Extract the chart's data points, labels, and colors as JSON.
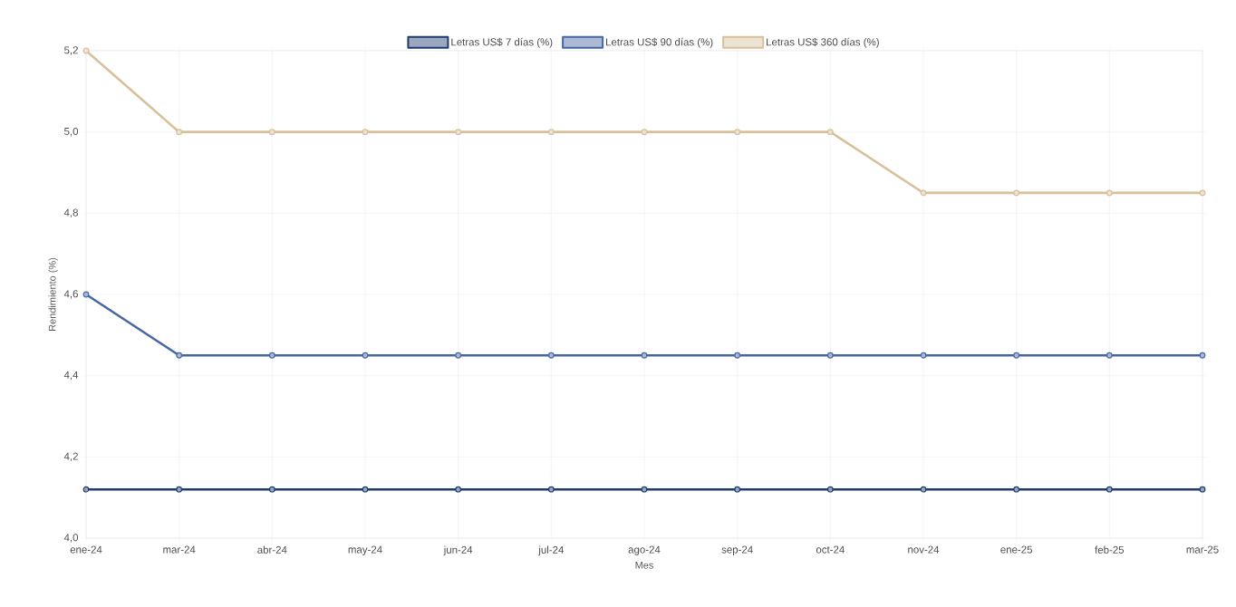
{
  "chart_data": {
    "type": "line",
    "xlabel": "Mes",
    "ylabel": "Rendimiento (%)",
    "categories": [
      "ene-24",
      "mar-24",
      "abr-24",
      "may-24",
      "jun-24",
      "jul-24",
      "ago-24",
      "sep-24",
      "oct-24",
      "nov-24",
      "ene-25",
      "feb-25",
      "mar-25"
    ],
    "series": [
      {
        "name": "Letras US$ 7 días (%)",
        "color": "#1f3b70",
        "values": [
          4.12,
          4.12,
          4.12,
          4.12,
          4.12,
          4.12,
          4.12,
          4.12,
          4.12,
          4.12,
          4.12,
          4.12,
          4.12
        ]
      },
      {
        "name": "Letras US$ 90 días (%)",
        "color": "#4666a4",
        "values": [
          4.6,
          4.45,
          4.45,
          4.45,
          4.45,
          4.45,
          4.45,
          4.45,
          4.45,
          4.45,
          4.45,
          4.45,
          4.45
        ]
      },
      {
        "name": "Letras US$ 360 días (%)",
        "color": "#d8c09c",
        "values": [
          5.2,
          5.0,
          5.0,
          5.0,
          5.0,
          5.0,
          5.0,
          5.0,
          5.0,
          4.85,
          4.85,
          4.85,
          4.85
        ]
      }
    ],
    "ylim": [
      4.0,
      5.2
    ],
    "yticks": [
      {
        "value": 4.0,
        "label": "4,0"
      },
      {
        "value": 4.2,
        "label": "4,2"
      },
      {
        "value": 4.4,
        "label": "4,4"
      },
      {
        "value": 4.6,
        "label": "4,6"
      },
      {
        "value": 4.8,
        "label": "4,8"
      },
      {
        "value": 5.0,
        "label": "5,0"
      },
      {
        "value": 5.2,
        "label": "5,2"
      }
    ],
    "grid": true,
    "legend": "top",
    "marker": "circle",
    "line_style": "solid"
  }
}
